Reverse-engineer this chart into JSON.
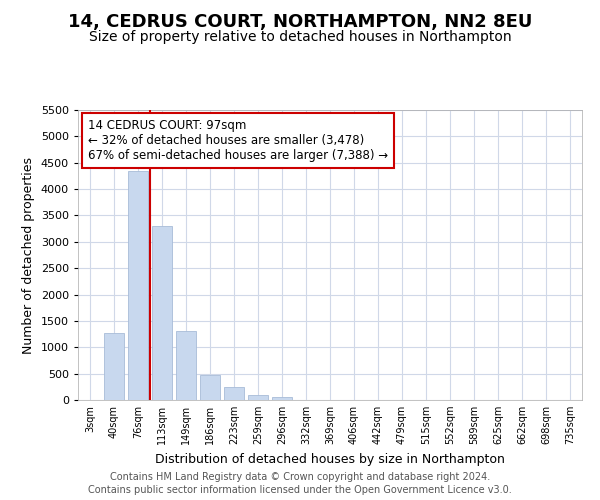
{
  "title": "14, CEDRUS COURT, NORTHAMPTON, NN2 8EU",
  "subtitle": "Size of property relative to detached houses in Northampton",
  "xlabel": "Distribution of detached houses by size in Northampton",
  "ylabel": "Number of detached properties",
  "categories": [
    "3sqm",
    "40sqm",
    "76sqm",
    "113sqm",
    "149sqm",
    "186sqm",
    "223sqm",
    "259sqm",
    "296sqm",
    "332sqm",
    "369sqm",
    "406sqm",
    "442sqm",
    "479sqm",
    "515sqm",
    "552sqm",
    "589sqm",
    "625sqm",
    "662sqm",
    "698sqm",
    "735sqm"
  ],
  "values": [
    0,
    1270,
    4350,
    3300,
    1300,
    480,
    245,
    100,
    65,
    0,
    0,
    0,
    0,
    0,
    0,
    0,
    0,
    0,
    0,
    0,
    0
  ],
  "bar_color": "#c8d8ee",
  "bar_edge_color": "#a8bcd8",
  "vline_x_pos": 2.5,
  "vline_color": "#cc0000",
  "annotation_text": "14 CEDRUS COURT: 97sqm\n← 32% of detached houses are smaller (3,478)\n67% of semi-detached houses are larger (7,388) →",
  "annotation_box_color": "#ffffff",
  "annotation_box_edge": "#cc0000",
  "ylim": [
    0,
    5500
  ],
  "yticks": [
    0,
    500,
    1000,
    1500,
    2000,
    2500,
    3000,
    3500,
    4000,
    4500,
    5000,
    5500
  ],
  "footer_line1": "Contains HM Land Registry data © Crown copyright and database right 2024.",
  "footer_line2": "Contains public sector information licensed under the Open Government Licence v3.0.",
  "bg_color": "#ffffff",
  "plot_bg_color": "#ffffff",
  "grid_color": "#d0d8e8",
  "title_fontsize": 13,
  "subtitle_fontsize": 10,
  "xlabel_fontsize": 9,
  "ylabel_fontsize": 9,
  "footer_fontsize": 7
}
